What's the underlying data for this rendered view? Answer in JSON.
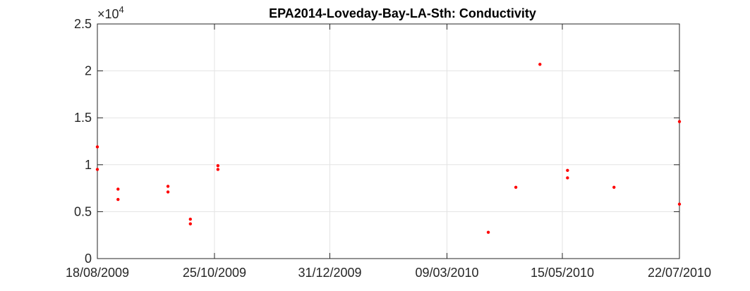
{
  "chart_data": {
    "type": "scatter",
    "title": "EPA2014-Loveday-Bay-LA-Sth: Conductivity",
    "xlabel": "",
    "ylabel": "",
    "y_multiplier_base": "×10",
    "y_multiplier_exponent": "4",
    "xlim": [
      "2009-08-18",
      "2010-07-22"
    ],
    "ylim": [
      0,
      2.5
    ],
    "x_ticks": [
      {
        "date": "2009-08-18",
        "label": "18/08/2009"
      },
      {
        "date": "2009-10-25",
        "label": "25/10/2009"
      },
      {
        "date": "2009-12-31",
        "label": "31/12/2009"
      },
      {
        "date": "2010-03-09",
        "label": "09/03/2010"
      },
      {
        "date": "2010-05-15",
        "label": "15/05/2010"
      },
      {
        "date": "2010-07-22",
        "label": "22/07/2010"
      }
    ],
    "y_ticks": [
      {
        "value": 0,
        "label": "0"
      },
      {
        "value": 0.5,
        "label": "0.5"
      },
      {
        "value": 1,
        "label": "1"
      },
      {
        "value": 1.5,
        "label": "1.5"
      },
      {
        "value": 2,
        "label": "2"
      },
      {
        "value": 2.5,
        "label": "2.5"
      }
    ],
    "grid": true,
    "marker_color": "#ff0000",
    "series": [
      {
        "points": [
          {
            "x": "2009-08-18",
            "y": 1.19
          },
          {
            "x": "2009-08-18",
            "y": 0.95
          },
          {
            "x": "2009-08-30",
            "y": 0.74
          },
          {
            "x": "2009-08-30",
            "y": 0.63
          },
          {
            "x": "2009-09-28",
            "y": 0.77
          },
          {
            "x": "2009-09-28",
            "y": 0.71
          },
          {
            "x": "2009-10-11",
            "y": 0.42
          },
          {
            "x": "2009-10-11",
            "y": 0.37
          },
          {
            "x": "2009-10-27",
            "y": 0.99
          },
          {
            "x": "2009-10-27",
            "y": 0.95
          },
          {
            "x": "2010-04-02",
            "y": 0.28
          },
          {
            "x": "2010-04-18",
            "y": 0.76
          },
          {
            "x": "2010-05-02",
            "y": 2.07
          },
          {
            "x": "2010-05-18",
            "y": 0.94
          },
          {
            "x": "2010-05-18",
            "y": 0.86
          },
          {
            "x": "2010-06-14",
            "y": 0.76
          },
          {
            "x": "2010-07-22",
            "y": 1.46
          },
          {
            "x": "2010-07-22",
            "y": 0.58
          }
        ]
      }
    ]
  }
}
